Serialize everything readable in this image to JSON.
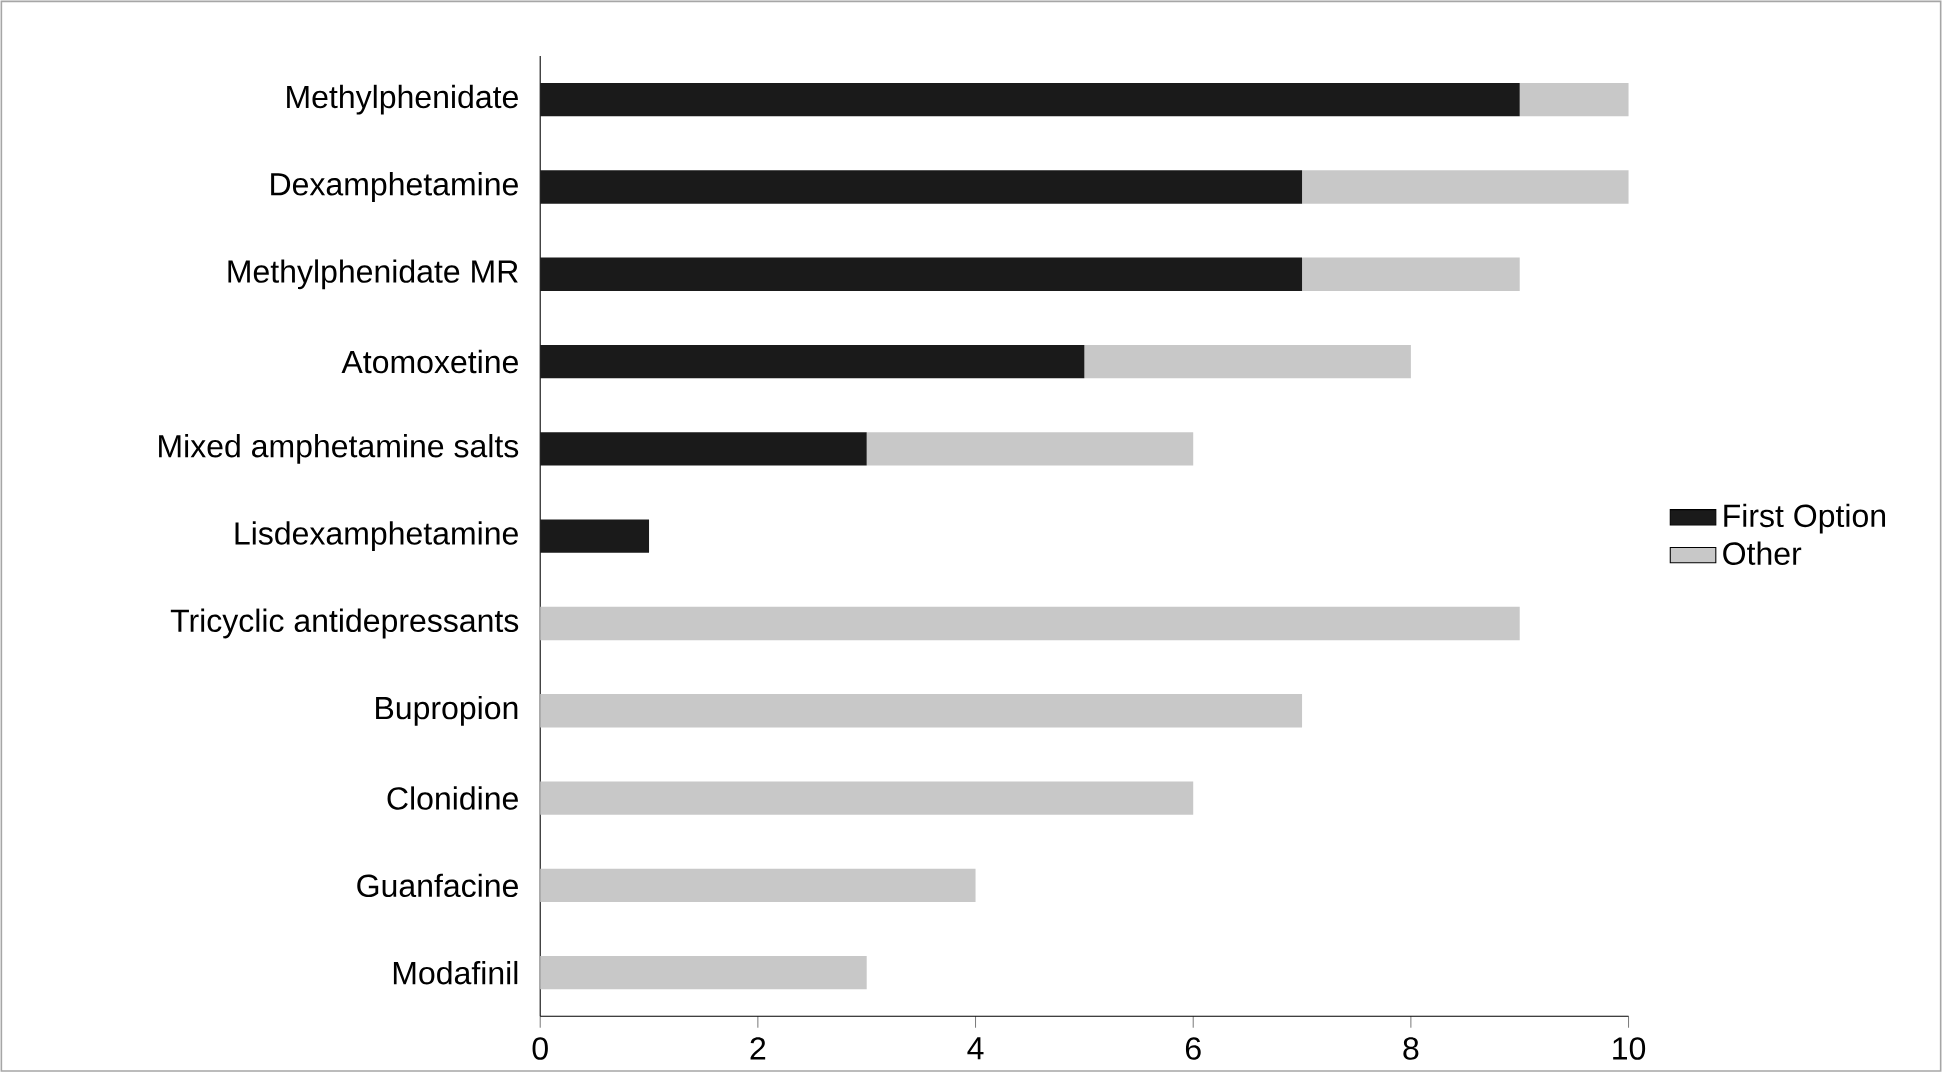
{
  "chart_data": {
    "type": "bar",
    "orientation": "horizontal",
    "stacked": true,
    "categories": [
      "Methylphenidate",
      "Dexamphetamine",
      "Methylphenidate MR",
      "Atomoxetine",
      "Mixed amphetamine salts",
      "Lisdexamphetamine",
      "Tricyclic antidepressants",
      "Bupropion",
      "Clonidine",
      "Guanfacine",
      "Modafinil"
    ],
    "series": [
      {
        "name": "First Option",
        "color": "#1a1a1a",
        "values": [
          9,
          7,
          7,
          5,
          3,
          1,
          0,
          0,
          0,
          0,
          0
        ]
      },
      {
        "name": "Other",
        "color": "#c8c8c8",
        "values": [
          1,
          3,
          2,
          3,
          3,
          0,
          9,
          7,
          6,
          4,
          3
        ]
      }
    ],
    "xlim": [
      0,
      10
    ],
    "xticks": [
      0,
      2,
      4,
      6,
      8,
      10
    ],
    "grid": false,
    "legend": "right"
  }
}
